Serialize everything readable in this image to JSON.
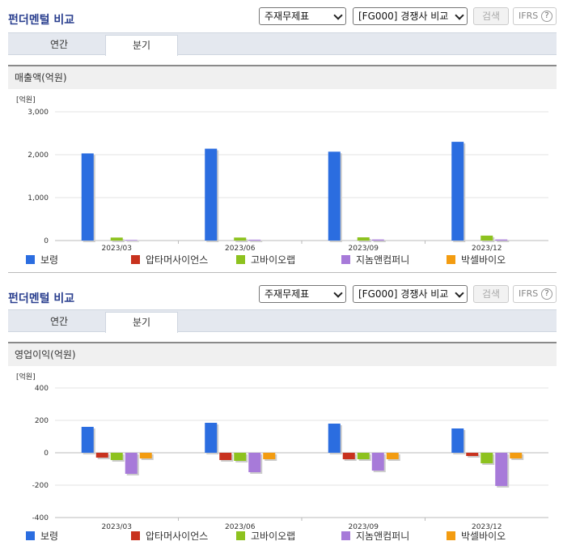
{
  "sections": [
    {
      "title": "펀더멘털 비교",
      "select1": "주재무제표",
      "select2": "[FG000] 경쟁사 비교",
      "search_label": "검색",
      "ifrs_label": "IFRS",
      "help_glyph": "?",
      "tabs": [
        "연간",
        "분기"
      ],
      "active_tab": "분기",
      "panel_title": "매출액(억원)"
    },
    {
      "title": "펀더멘털 비교",
      "select1": "주재무제표",
      "select2": "[FG000] 경쟁사 비교",
      "search_label": "검색",
      "ifrs_label": "IFRS",
      "help_glyph": "?",
      "tabs": [
        "연간",
        "분기"
      ],
      "active_tab": "분기",
      "panel_title": "영업이익(억원)"
    }
  ],
  "chart_data": [
    {
      "type": "bar",
      "title": "매출액(억원)",
      "unit_label": "[억원]",
      "categories": [
        "2023/03",
        "2023/06",
        "2023/09",
        "2023/12"
      ],
      "ylim": [
        0,
        3000
      ],
      "yticks": [
        0,
        1000,
        2000,
        3000
      ],
      "ytick_labels": [
        "0",
        "1,000",
        "2,000",
        "3,000"
      ],
      "grid": true,
      "legend": "bottom",
      "series": [
        {
          "name": "보령",
          "color": "#2b6de0",
          "values": [
            2030,
            2140,
            2070,
            2300
          ]
        },
        {
          "name": "압타머사이언스",
          "color": "#c8321e",
          "values": [
            0,
            0,
            0,
            0
          ]
        },
        {
          "name": "고바이오랩",
          "color": "#8dc21f",
          "values": [
            70,
            70,
            75,
            115
          ]
        },
        {
          "name": "지놈앤컴퍼니",
          "color": "#a77ad9",
          "values": [
            15,
            20,
            25,
            25
          ]
        },
        {
          "name": "박셀바이오",
          "color": "#f39c11",
          "values": [
            0,
            0,
            0,
            0
          ]
        }
      ]
    },
    {
      "type": "bar",
      "title": "영업이익(억원)",
      "unit_label": "[억원]",
      "categories": [
        "2023/03",
        "2023/06",
        "2023/09",
        "2023/12"
      ],
      "ylim": [
        -400,
        400
      ],
      "yticks": [
        -400,
        -200,
        0,
        200,
        400
      ],
      "ytick_labels": [
        "-400",
        "-200",
        "0",
        "200",
        "400"
      ],
      "grid": true,
      "legend": "bottom",
      "series": [
        {
          "name": "보령",
          "color": "#2b6de0",
          "values": [
            160,
            185,
            180,
            150
          ]
        },
        {
          "name": "압타머사이언스",
          "color": "#c8321e",
          "values": [
            -30,
            -45,
            -40,
            -20
          ]
        },
        {
          "name": "고바이오랩",
          "color": "#8dc21f",
          "values": [
            -45,
            -50,
            -40,
            -65
          ]
        },
        {
          "name": "지놈앤컴퍼니",
          "color": "#a77ad9",
          "values": [
            -130,
            -120,
            -110,
            -205
          ]
        },
        {
          "name": "박셀바이오",
          "color": "#f39c11",
          "values": [
            -35,
            -40,
            -40,
            -35
          ]
        }
      ]
    }
  ]
}
